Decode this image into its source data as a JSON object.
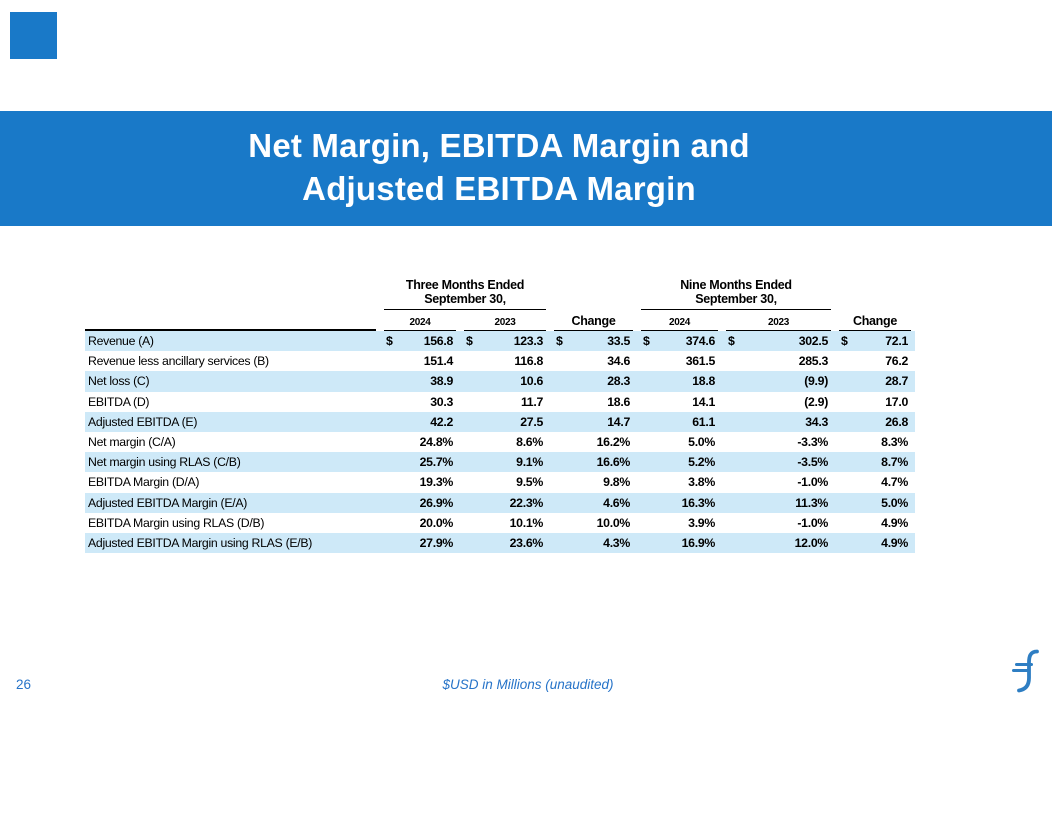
{
  "slide": {
    "title_line1": "Net Margin, EBITDA Margin and",
    "title_line2": "Adjusted EBITDA Margin",
    "page_number": "26",
    "footnote": "$USD in Millions (unaudited)"
  },
  "colors": {
    "banner_blue": "#1979C8",
    "row_stripe_blue": "#CEE9F8",
    "footer_text_blue": "#2673C8",
    "logo_blue": "#2E7EC3"
  },
  "chart_data": {
    "type": "table",
    "groups": [
      {
        "title": "Three Months Ended",
        "subtitle": "September 30,"
      },
      {
        "title": "Nine Months Ended",
        "subtitle": "September 30,"
      }
    ],
    "columns": [
      "2024",
      "2023",
      "Change",
      "2024",
      "2023",
      "Change"
    ],
    "rows": [
      {
        "label": "Revenue (A)",
        "dollar": true,
        "values": [
          "156.8",
          "123.3",
          "33.5",
          "374.6",
          "302.5",
          "72.1"
        ]
      },
      {
        "label": "Revenue less ancillary services (B)",
        "dollar": false,
        "values": [
          "151.4",
          "116.8",
          "34.6",
          "361.5",
          "285.3",
          "76.2"
        ]
      },
      {
        "label": "Net loss (C)",
        "dollar": false,
        "values": [
          "38.9",
          "10.6",
          "28.3",
          "18.8",
          "(9.9)",
          "28.7"
        ]
      },
      {
        "label": "EBITDA (D)",
        "dollar": false,
        "values": [
          "30.3",
          "11.7",
          "18.6",
          "14.1",
          "(2.9)",
          "17.0"
        ]
      },
      {
        "label": "Adjusted EBITDA (E)",
        "dollar": false,
        "values": [
          "42.2",
          "27.5",
          "14.7",
          "61.1",
          "34.3",
          "26.8"
        ]
      },
      {
        "label": "Net margin (C/A)",
        "dollar": false,
        "values": [
          "24.8%",
          "8.6%",
          "16.2%",
          "5.0%",
          "-3.3%",
          "8.3%"
        ]
      },
      {
        "label": "Net margin using RLAS (C/B)",
        "dollar": false,
        "values": [
          "25.7%",
          "9.1%",
          "16.6%",
          "5.2%",
          "-3.5%",
          "8.7%"
        ]
      },
      {
        "label": "EBITDA Margin (D/A)",
        "dollar": false,
        "values": [
          "19.3%",
          "9.5%",
          "9.8%",
          "3.8%",
          "-1.0%",
          "4.7%"
        ]
      },
      {
        "label": "Adjusted EBITDA Margin (E/A)",
        "dollar": false,
        "values": [
          "26.9%",
          "22.3%",
          "4.6%",
          "16.3%",
          "11.3%",
          "5.0%"
        ]
      },
      {
        "label": "EBITDA Margin using RLAS (D/B)",
        "dollar": false,
        "values": [
          "20.0%",
          "10.1%",
          "10.0%",
          "3.9%",
          "-1.0%",
          "4.9%"
        ]
      },
      {
        "label": "Adjusted EBITDA Margin using RLAS (E/B)",
        "dollar": false,
        "values": [
          "27.9%",
          "23.6%",
          "4.3%",
          "16.9%",
          "12.0%",
          "4.9%"
        ]
      }
    ]
  }
}
